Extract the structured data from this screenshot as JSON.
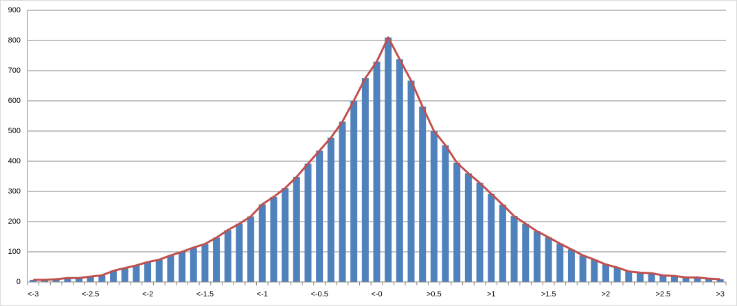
{
  "chart_data": {
    "type": "bar",
    "categories": [
      "<-3",
      null,
      null,
      null,
      null,
      "<-2.5",
      null,
      null,
      null,
      null,
      "<-2",
      null,
      null,
      null,
      null,
      "<-1.5",
      null,
      null,
      null,
      null,
      "<-1",
      null,
      null,
      null,
      null,
      "<-0.5",
      null,
      null,
      null,
      null,
      "<-0",
      null,
      null,
      null,
      null,
      ">0.5",
      null,
      null,
      null,
      null,
      ">1",
      null,
      null,
      null,
      null,
      ">1.5",
      null,
      null,
      null,
      null,
      ">2",
      null,
      null,
      null,
      null,
      ">2.5",
      null,
      null,
      null,
      null,
      ">3"
    ],
    "series": [
      {
        "type": "bar",
        "color": "#4f81bd",
        "values": [
          7,
          7,
          9,
          13,
          13,
          18,
          22,
          37,
          46,
          55,
          66,
          74,
          88,
          100,
          114,
          126,
          147,
          172,
          193,
          217,
          257,
          282,
          311,
          348,
          392,
          435,
          478,
          531,
          601,
          675,
          730,
          810,
          738,
          667,
          581,
          500,
          453,
          395,
          360,
          328,
          292,
          256,
          218,
          193,
          168,
          148,
          127,
          108,
          88,
          74,
          58,
          48,
          35,
          31,
          29,
          22,
          20,
          15,
          15,
          11,
          9
        ]
      },
      {
        "type": "line",
        "color": "#c0504d",
        "values": [
          7,
          7,
          9,
          13,
          13,
          18,
          22,
          37,
          46,
          55,
          66,
          74,
          88,
          100,
          114,
          126,
          147,
          172,
          193,
          217,
          257,
          282,
          311,
          348,
          392,
          435,
          478,
          531,
          601,
          675,
          730,
          810,
          738,
          667,
          581,
          500,
          453,
          395,
          360,
          328,
          292,
          256,
          218,
          193,
          168,
          148,
          127,
          108,
          88,
          74,
          58,
          48,
          35,
          31,
          29,
          22,
          20,
          15,
          15,
          11,
          9
        ]
      }
    ],
    "ylim": [
      0,
      900
    ],
    "yticks": [
      0,
      100,
      200,
      300,
      400,
      500,
      600,
      700,
      800,
      900
    ],
    "grid": true
  }
}
